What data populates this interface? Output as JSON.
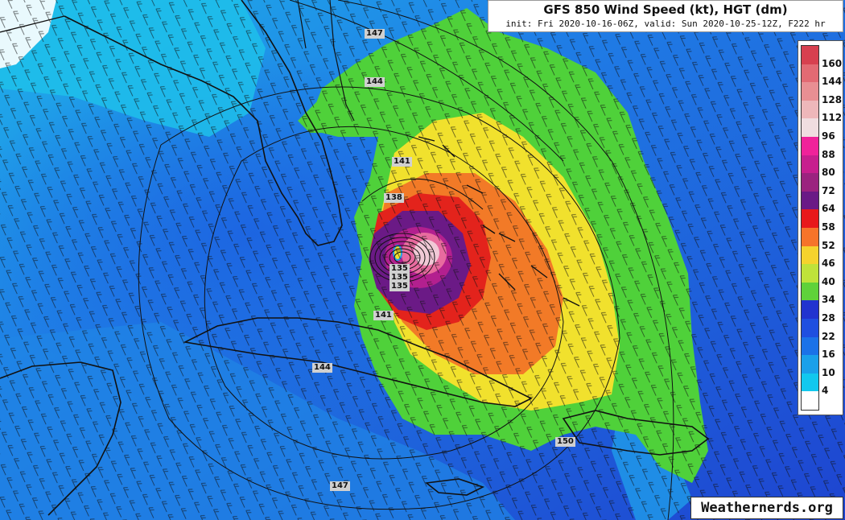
{
  "header": {
    "title": "GFS 850 Wind Speed (kt), HGT (dm)",
    "subtitle": "init: Fri 2020-10-16-06Z, valid: Sun 2020-10-25-12Z, F222 hr"
  },
  "legend": {
    "labels": [
      "160",
      "144",
      "128",
      "112",
      "96",
      "88",
      "80",
      "72",
      "64",
      "58",
      "52",
      "46",
      "40",
      "34",
      "28",
      "22",
      "16",
      "10",
      "4"
    ],
    "colors": [
      "#d7404f",
      "#e26a73",
      "#e88f93",
      "#eeb7ba",
      "#f0dde0",
      "#f0229a",
      "#c71f8e",
      "#9b237f",
      "#6a1a86",
      "#e8191b",
      "#f6742a",
      "#f5d32d",
      "#bfe23a",
      "#5fd23a",
      "#2133cf",
      "#1f4fe0",
      "#1b72e8",
      "#1aa0ea",
      "#12c8ee",
      "#ffffff"
    ]
  },
  "hgt_contours": [
    "147",
    "144",
    "141",
    "138",
    "135",
    "135",
    "135",
    "141",
    "144",
    "150",
    "147"
  ],
  "credit": "Weathernerds.org",
  "colors": {
    "ocean_deep": "#1e4fd6",
    "ocean_mid": "#1f74e6",
    "ocean_light": "#20a6ec",
    "green": "#3fd23a",
    "yellow": "#f3dc2c",
    "orange": "#f27b26",
    "red": "#e3221c",
    "purple": "#6a1a86",
    "magenta": "#b11f8c"
  }
}
